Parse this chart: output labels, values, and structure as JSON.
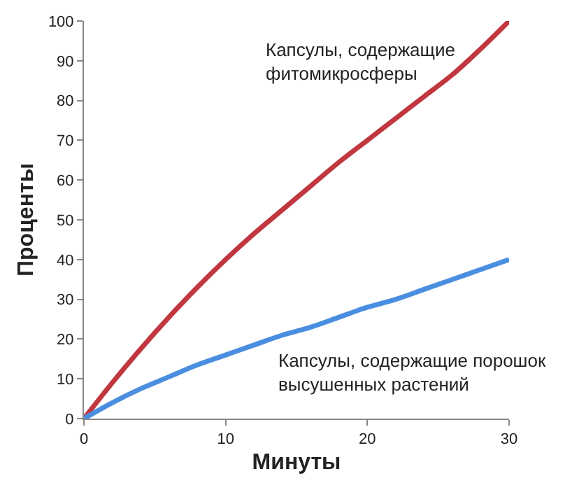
{
  "chart_data": {
    "type": "line",
    "xlabel": "Минуты",
    "ylabel": "Проценты",
    "x": [
      0,
      2,
      4,
      6,
      8,
      10,
      12,
      14,
      16,
      18,
      20,
      22,
      24,
      26,
      28,
      30
    ],
    "series": [
      {
        "name": "Капсулы, содержащие фитомикросферы",
        "color": "#c0373f",
        "values": [
          0,
          9,
          17.5,
          25.5,
          33,
          40,
          46.5,
          52.5,
          58.5,
          64.5,
          70,
          75.5,
          81,
          86.5,
          93,
          100
        ]
      },
      {
        "name": "Капсулы, содержащие порошок высушенных растений",
        "color": "#4a8ee0",
        "values": [
          0,
          4,
          7.5,
          10.5,
          13.5,
          16,
          18.5,
          21,
          23,
          25.5,
          28,
          30,
          32.5,
          35,
          37.5,
          40
        ]
      }
    ],
    "xlim": [
      0,
      30
    ],
    "xticks": [
      0,
      10,
      20,
      30
    ],
    "ylim": [
      0,
      100
    ],
    "yticks": [
      0,
      10,
      20,
      30,
      40,
      50,
      60,
      70,
      80,
      90,
      100
    ],
    "legend": false
  }
}
